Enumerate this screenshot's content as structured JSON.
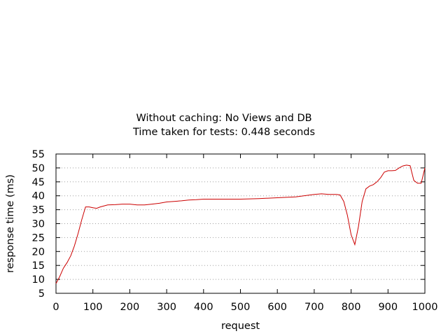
{
  "chart_data": {
    "type": "line",
    "title": "Without caching: No Views and DB",
    "subtitle": "Time taken for tests: 0.448 seconds",
    "xlabel": "request",
    "ylabel": "response time (ms)",
    "xlim": [
      0,
      1000
    ],
    "ylim": [
      5,
      55
    ],
    "xticks": [
      0,
      100,
      200,
      300,
      400,
      500,
      600,
      700,
      800,
      900,
      1000
    ],
    "yticks": [
      5,
      10,
      15,
      20,
      25,
      30,
      35,
      40,
      45,
      50,
      55
    ],
    "grid": "horizontal-dotted",
    "legend": "none",
    "line_color": "#cc0000",
    "series": [
      {
        "x": [
          0,
          10,
          20,
          30,
          40,
          50,
          60,
          70,
          80,
          90,
          100,
          110,
          120,
          140,
          160,
          180,
          200,
          220,
          240,
          260,
          280,
          300,
          320,
          340,
          360,
          380,
          400,
          450,
          500,
          550,
          600,
          650,
          700,
          720,
          740,
          760,
          770,
          780,
          790,
          800,
          810,
          820,
          830,
          840,
          850,
          860,
          870,
          880,
          890,
          900,
          910,
          920,
          930,
          940,
          950,
          960,
          970,
          980,
          990,
          1000
        ],
        "y": [
          8.5,
          11,
          14,
          16,
          18.5,
          22,
          26.5,
          31.5,
          36,
          36,
          35.7,
          35.5,
          36,
          36.7,
          36.8,
          37,
          37,
          36.7,
          36.7,
          37,
          37.3,
          37.8,
          38,
          38.2,
          38.5,
          38.6,
          38.8,
          38.8,
          38.8,
          39,
          39.3,
          39.6,
          40.5,
          40.7,
          40.5,
          40.5,
          40.3,
          38,
          33,
          26,
          22.5,
          29,
          38,
          42.5,
          43.5,
          44,
          45,
          46.5,
          48.5,
          49,
          49,
          49.1,
          50,
          50.7,
          51,
          50.8,
          45.5,
          44.5,
          44.5,
          50
        ]
      }
    ]
  }
}
